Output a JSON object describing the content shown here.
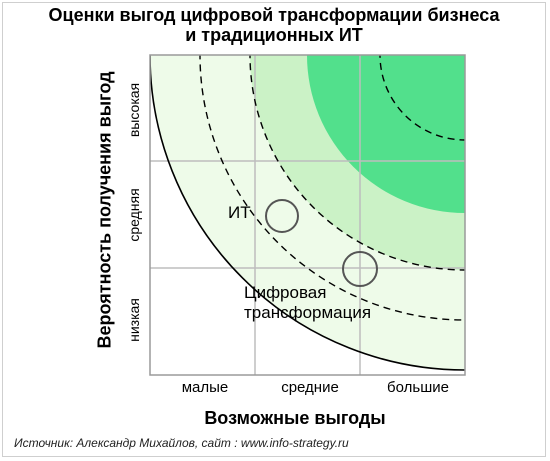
{
  "title_line1": "Оценки выгод цифровой трансформации бизнеса",
  "title_line2": "и традиционных ИТ",
  "axes": {
    "y_label": "Вероятность получения выгод",
    "y_ticks": [
      "низкая",
      "средняя",
      "высокая"
    ],
    "x_label": "Возможные выгоды",
    "x_ticks": [
      "малые",
      "средние",
      "большие"
    ]
  },
  "points": {
    "it_label": "ИТ",
    "digital_line1": "Цифровая",
    "digital_line2": "трансформация"
  },
  "source": "Источник: Александр Михайлов, сайт : www.info-strategy.ru",
  "colors": {
    "zone_light": "#eefbe9",
    "zone_mid": "#cbf2c6",
    "zone_dark": "#52e08c",
    "grid": "#bdbdbd",
    "marker": "#555555"
  }
}
